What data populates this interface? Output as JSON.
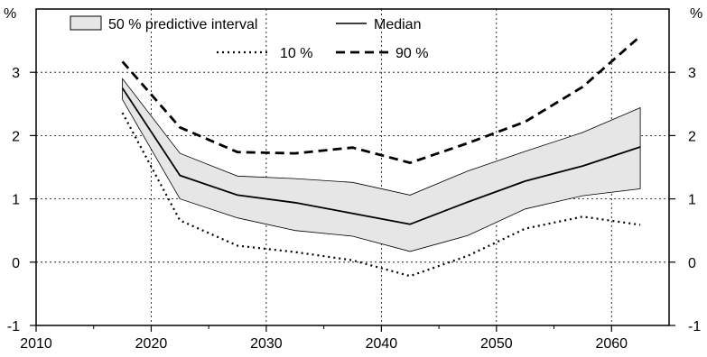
{
  "chart_data": {
    "type": "line",
    "title": "",
    "xlabel": "",
    "ylabel": "",
    "y_unit_left": "%",
    "y_unit_right": "%",
    "xlim": [
      2010,
      2065
    ],
    "ylim": [
      -1,
      4
    ],
    "x_ticks": [
      "2010",
      "2020",
      "2030",
      "2040",
      "2050",
      "2060"
    ],
    "y_ticks": [
      "-1",
      "0",
      "1",
      "2",
      "3"
    ],
    "grid": true,
    "legend_position": "top",
    "x": [
      2017.5,
      2022.5,
      2027.5,
      2032.5,
      2037.5,
      2042.5,
      2047.5,
      2052.5,
      2057.5,
      2062.5
    ],
    "band": {
      "name": "50 % predictive interval",
      "lower": [
        2.57,
        1.0,
        0.7,
        0.5,
        0.41,
        0.17,
        0.42,
        0.84,
        1.05,
        1.16
      ],
      "upper": [
        2.9,
        1.72,
        1.36,
        1.32,
        1.26,
        1.06,
        1.44,
        1.75,
        2.05,
        2.44
      ],
      "color": "#e6e6e6"
    },
    "series": [
      {
        "name": "Median",
        "style": "solid",
        "values": [
          2.75,
          1.37,
          1.06,
          0.94,
          0.77,
          0.6,
          0.95,
          1.28,
          1.52,
          1.82
        ]
      },
      {
        "name": "10 %",
        "style": "dotted",
        "values": [
          2.36,
          0.66,
          0.26,
          0.16,
          0.03,
          -0.22,
          0.1,
          0.53,
          0.72,
          0.59
        ]
      },
      {
        "name": "90 %",
        "style": "dashed",
        "values": [
          3.17,
          2.13,
          1.74,
          1.72,
          1.81,
          1.57,
          1.88,
          2.22,
          2.77,
          3.57
        ]
      }
    ]
  }
}
